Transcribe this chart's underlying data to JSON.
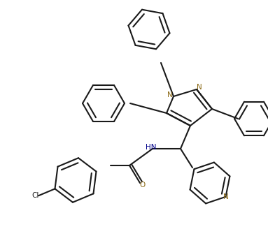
{
  "background_color": "#ffffff",
  "bond_color": "#1a1a1a",
  "n_color": "#8B6914",
  "lw": 1.5,
  "figsize": [
    3.83,
    3.38
  ],
  "dpi": 100,
  "xlim": [
    0,
    383
  ],
  "ylim": [
    0,
    338
  ]
}
